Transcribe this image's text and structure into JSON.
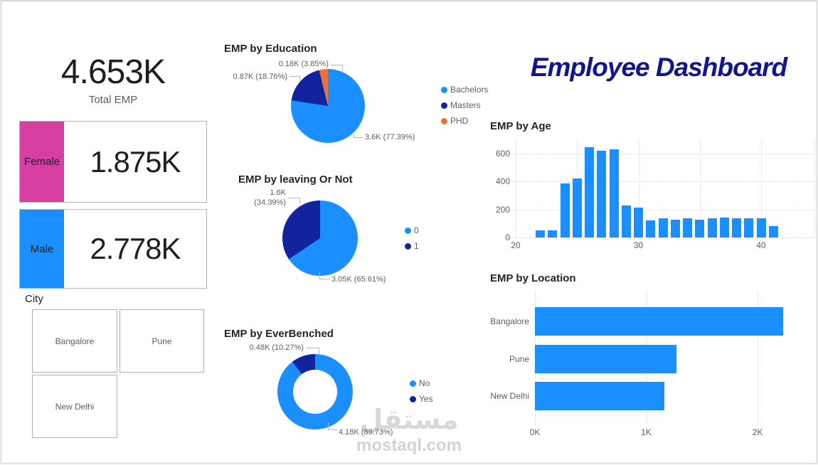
{
  "header": {
    "title": "Employee Dashboard",
    "color": "#12158b"
  },
  "kpis": {
    "total": {
      "value": "4.653K",
      "label": "Total EMP"
    },
    "cards": [
      {
        "label": "Female",
        "value": "1.875K",
        "color": "#d63ea1"
      },
      {
        "label": "Male",
        "value": "2.778K",
        "color": "#1b8fff"
      }
    ]
  },
  "city_slicer": {
    "title": "City",
    "options": [
      "Bangalore",
      "Pune",
      "New Delhi"
    ]
  },
  "chart_data": [
    {
      "type": "pie",
      "title": "EMP by Education",
      "labels": [
        "Bachelors",
        "Masters",
        "PHD"
      ],
      "values": [
        3600,
        870,
        180
      ],
      "data_labels": [
        "3.6K (77.39%)",
        "0.87K (18.76%)",
        "0.18K (3.85%)"
      ],
      "colors": [
        "#1b8fff",
        "#12239e",
        "#e8743b"
      ],
      "legend_position": "right"
    },
    {
      "type": "pie",
      "title": "EMP by leaving Or Not",
      "labels": [
        "0",
        "1"
      ],
      "values": [
        3050,
        1600
      ],
      "data_labels": [
        "3.05K (65.61%)",
        "1.6K (34.39%)"
      ],
      "colors": [
        "#1b8fff",
        "#12239e"
      ],
      "legend_position": "right"
    },
    {
      "type": "donut",
      "title": "EMP by EverBenched",
      "labels": [
        "No",
        "Yes"
      ],
      "values": [
        4180,
        480
      ],
      "data_labels": [
        "4.18K (89.73%)",
        "0.48K (10.27%)"
      ],
      "colors": [
        "#1b8fff",
        "#12239e"
      ],
      "legend_position": "right"
    },
    {
      "type": "bar",
      "title": "EMP by Age",
      "x": [
        22,
        23,
        24,
        25,
        26,
        27,
        28,
        29,
        30,
        31,
        32,
        33,
        34,
        35,
        36,
        37,
        38,
        39,
        40,
        41
      ],
      "values": [
        50,
        50,
        385,
        420,
        645,
        620,
        630,
        230,
        215,
        120,
        135,
        125,
        140,
        125,
        140,
        145,
        140,
        135,
        140,
        80
      ],
      "xlabel": "",
      "ylabel": "",
      "xticks": [
        20,
        30,
        40
      ],
      "grid_x": [
        20,
        25,
        30,
        35,
        40
      ],
      "yticks": [
        0,
        200,
        400,
        600
      ],
      "ylim": [
        0,
        700
      ],
      "bar_color": "#1b8fff",
      "grid": true
    },
    {
      "type": "bar-horizontal",
      "title": "EMP by Location",
      "categories": [
        "Bangalore",
        "Pune",
        "New Delhi"
      ],
      "values": [
        2230,
        1270,
        1160
      ],
      "xticks": [
        "0K",
        "1K",
        "2K"
      ],
      "xtick_values": [
        0,
        1000,
        2000
      ],
      "xlim": [
        0,
        2510
      ],
      "bar_color": "#1b8fff",
      "grid": true
    }
  ],
  "watermark": {
    "line1": "مستقل",
    "line2": "mostaql.com"
  }
}
